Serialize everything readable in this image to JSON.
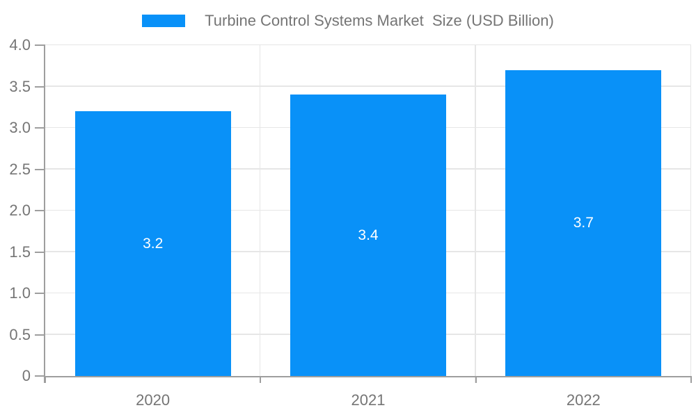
{
  "chart_data": {
    "type": "bar",
    "title": "Turbine Control Systems Market  Size (USD Billion)",
    "categories": [
      "2020",
      "2021",
      "2022"
    ],
    "values": [
      3.2,
      3.4,
      3.7
    ],
    "value_labels": [
      "3.2",
      "3.4",
      "3.7"
    ],
    "xlabel": "",
    "ylabel": "",
    "ylim": [
      0,
      4
    ],
    "ytick_step": 0.5,
    "ytick_labels": [
      "0",
      "0.5",
      "1.0",
      "1.5",
      "2.0",
      "2.5",
      "3.0",
      "3.5",
      "4.0"
    ],
    "grid": true,
    "legend_position": "top",
    "colors": {
      "bar": "#0991f8",
      "bar_label": "#ffffff",
      "grid": "#e6e6e6",
      "axis": "#9e9e9e",
      "text": "#757575",
      "background": "#ffffff"
    }
  }
}
